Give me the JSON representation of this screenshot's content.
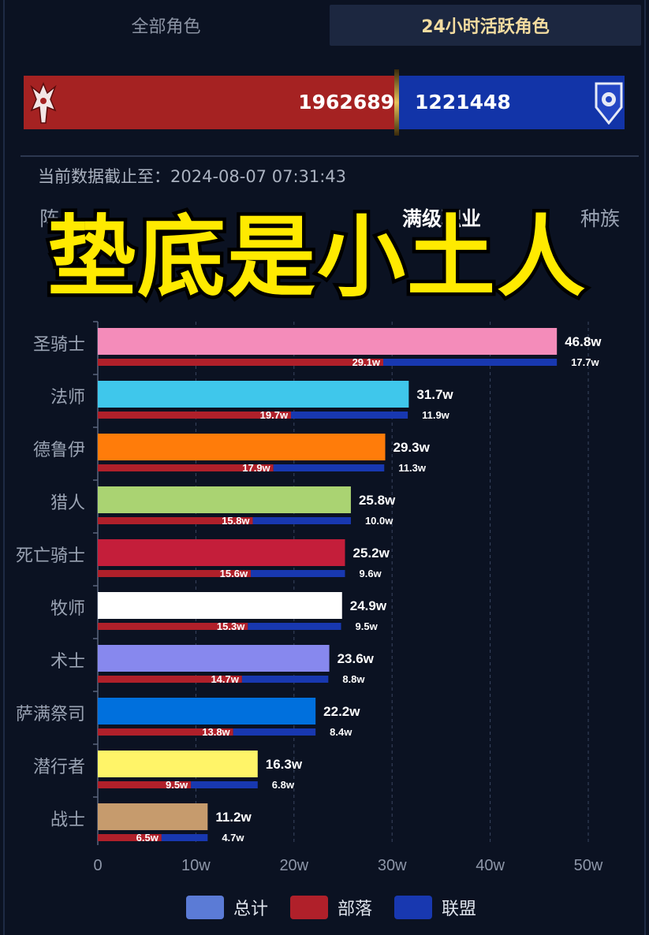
{
  "tabs": {
    "all_label": "全部角色",
    "active_label": "24小时活跃角色"
  },
  "faction": {
    "horde_value": "1962689",
    "alliance_value": "1221448",
    "horde_color": "#a52222",
    "alliance_color": "#1234a8",
    "horde_icon": "horde-crest-icon",
    "alliance_icon": "alliance-lion-icon"
  },
  "timestamp": "当前数据截止至：2024-08-07 07:31:43",
  "subtabs": {
    "left": "阵",
    "middle": "满级职业",
    "right": "种族"
  },
  "banner_text": "垫底是小土人",
  "legend": [
    {
      "label": "总计",
      "color": "#5b7bd6"
    },
    {
      "label": "部落",
      "color": "#b0202a"
    },
    {
      "label": "联盟",
      "color": "#1838b0"
    }
  ],
  "chart_data": {
    "type": "bar",
    "orientation": "horizontal",
    "unit": "w",
    "categories": [
      "圣骑士",
      "法师",
      "德鲁伊",
      "猎人",
      "死亡骑士",
      "牧师",
      "术士",
      "萨满祭司",
      "潜行者",
      "战士"
    ],
    "series": [
      {
        "name": "总计",
        "values": [
          46.8,
          31.7,
          29.3,
          25.8,
          25.2,
          24.9,
          23.6,
          22.2,
          16.3,
          11.2
        ],
        "colors": [
          "#f48cba",
          "#3fc7eb",
          "#ff7c0a",
          "#aad372",
          "#c41e3a",
          "#ffffff",
          "#8788ee",
          "#0070dd",
          "#fff468",
          "#c69b6d"
        ],
        "labels": [
          "46.8w",
          "31.7w",
          "29.3w",
          "25.8w",
          "25.2w",
          "24.9w",
          "23.6w",
          "22.2w",
          "16.3w",
          "11.2w"
        ]
      },
      {
        "name": "部落",
        "values": [
          29.1,
          19.7,
          17.9,
          15.8,
          15.6,
          15.3,
          14.7,
          13.8,
          9.5,
          6.5
        ],
        "color": "#b0202a",
        "labels": [
          "29.1w",
          "19.7w",
          "17.9w",
          "15.8w",
          "15.6w",
          "15.3w",
          "14.7w",
          "13.8w",
          "9.5w",
          "6.5w"
        ]
      },
      {
        "name": "联盟",
        "values": [
          17.7,
          11.9,
          11.3,
          10.0,
          9.6,
          9.5,
          8.8,
          8.4,
          6.8,
          4.7
        ],
        "color": "#1838b0",
        "labels": [
          "17.7w",
          "11.9w",
          "11.3w",
          "10.0w",
          "9.6w",
          "9.5w",
          "8.8w",
          "8.4w",
          "6.8w",
          "4.7w"
        ]
      }
    ],
    "xlim": [
      0,
      50
    ],
    "x_ticks": [
      "0",
      "10w",
      "20w",
      "30w",
      "40w",
      "50w"
    ],
    "grid": "vertical dashed"
  }
}
